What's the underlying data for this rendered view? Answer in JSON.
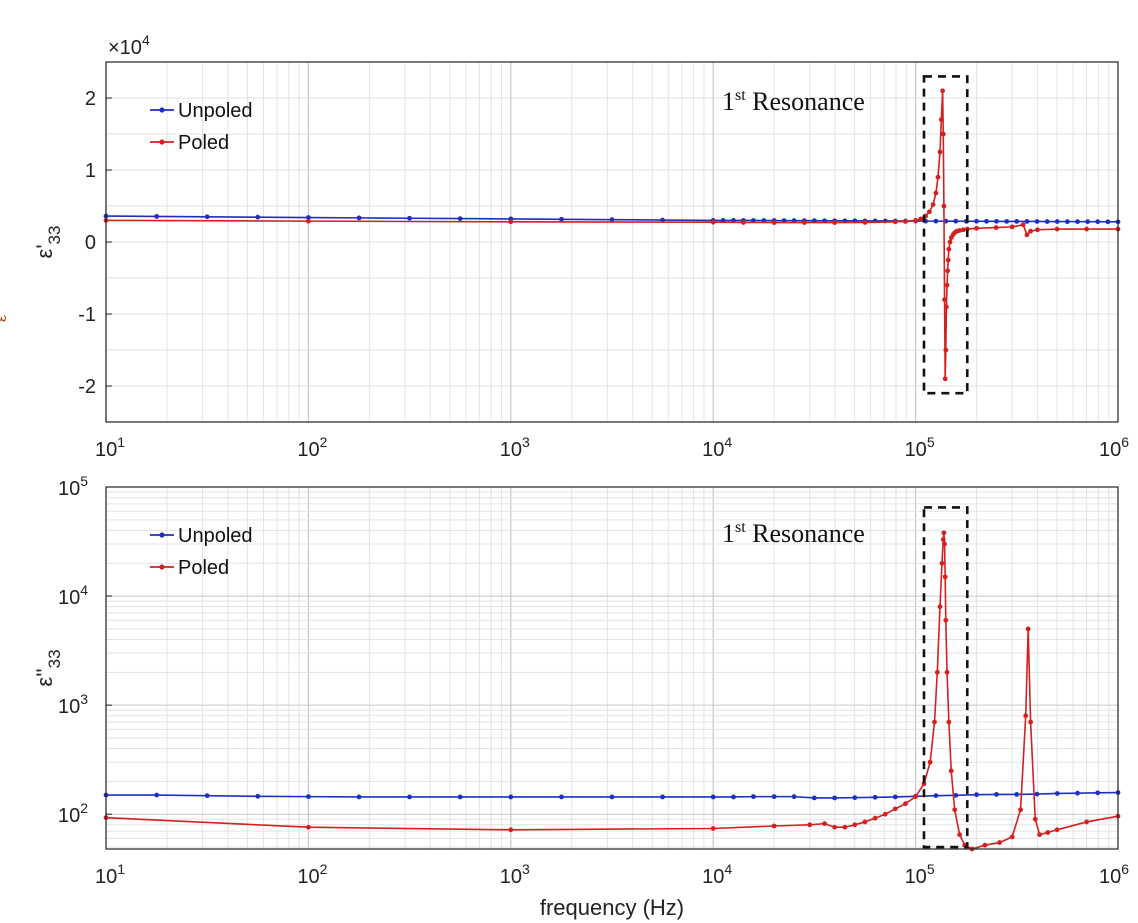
{
  "chart_data": [
    {
      "type": "line",
      "panel": "top",
      "ylabel": "ε'",
      "ylabel_sub": "33",
      "xscale": "log",
      "xlim": [
        10,
        1000000
      ],
      "xticks": [
        10,
        100,
        1000,
        10000,
        100000,
        1000000
      ],
      "xtick_labels": [
        {
          "base": "10",
          "exp": "1"
        },
        {
          "base": "10",
          "exp": "2"
        },
        {
          "base": "10",
          "exp": "3"
        },
        {
          "base": "10",
          "exp": "4"
        },
        {
          "base": "10",
          "exp": "5"
        },
        {
          "base": "10",
          "exp": "6"
        }
      ],
      "ylim": [
        -2.5,
        2.5
      ],
      "yticks": [
        -2,
        -1,
        0,
        1,
        2
      ],
      "ytick_labels": [
        "-2",
        "-1",
        "0",
        "1",
        "2"
      ],
      "y_multiplier": {
        "prefix": "×10",
        "exp": "4"
      },
      "grid": true,
      "legend_position": "top-left",
      "annotation": {
        "base": "1",
        "sup": "st",
        "text": " Resonance"
      },
      "highlight_box_x": [
        110000,
        180000
      ],
      "highlight_box_y": [
        -2.1,
        2.3
      ],
      "series": [
        {
          "name": "Unpoled",
          "color": "#1f2fbf",
          "x": [
            10,
            17.8,
            31.6,
            56.2,
            100,
            178,
            316,
            562,
            1000,
            1780,
            3160,
            5620,
            10000,
            11200,
            12600,
            14100,
            15800,
            17800,
            20000,
            22400,
            25100,
            28200,
            31600,
            35500,
            39800,
            44700,
            50100,
            56200,
            63100,
            70800,
            79400,
            89100,
            100000,
            112000,
            126000,
            141000,
            158000,
            178000,
            200000,
            224000,
            251000,
            282000,
            316000,
            355000,
            398000,
            447000,
            501000,
            562000,
            631000,
            708000,
            794000,
            891000,
            1000000
          ],
          "y": [
            0.36,
            0.355,
            0.35,
            0.345,
            0.34,
            0.335,
            0.33,
            0.325,
            0.32,
            0.315,
            0.31,
            0.305,
            0.3,
            0.3,
            0.3,
            0.299,
            0.299,
            0.298,
            0.298,
            0.297,
            0.297,
            0.296,
            0.296,
            0.295,
            0.295,
            0.294,
            0.294,
            0.293,
            0.293,
            0.292,
            0.292,
            0.291,
            0.291,
            0.29,
            0.29,
            0.289,
            0.289,
            0.288,
            0.288,
            0.287,
            0.287,
            0.286,
            0.286,
            0.285,
            0.285,
            0.284,
            0.284,
            0.283,
            0.283,
            0.282,
            0.282,
            0.281,
            0.28
          ]
        },
        {
          "name": "Poled",
          "color": "#d42020",
          "x": [
            10,
            100,
            1000,
            10000,
            14100,
            20000,
            28200,
            39800,
            56200,
            79400,
            89100,
            100000,
            106000,
            112000,
            117000,
            122000,
            126000,
            129000,
            132000,
            134000,
            136000,
            137000,
            138000,
            139000,
            140000,
            141000,
            142000,
            143000,
            144000,
            145000,
            146000,
            148000,
            150000,
            153000,
            156000,
            160000,
            165000,
            172000,
            180000,
            200000,
            250000,
            300000,
            340000,
            355000,
            370000,
            400000,
            500000,
            700000,
            1000000
          ],
          "y": [
            0.3,
            0.29,
            0.28,
            0.275,
            0.272,
            0.27,
            0.27,
            0.27,
            0.272,
            0.28,
            0.285,
            0.3,
            0.32,
            0.36,
            0.42,
            0.52,
            0.68,
            0.9,
            1.25,
            1.7,
            2.1,
            1.5,
            0.5,
            -0.8,
            -1.9,
            -1.5,
            -0.9,
            -0.6,
            -0.4,
            -0.25,
            -0.1,
            0.0,
            0.06,
            0.1,
            0.13,
            0.15,
            0.16,
            0.17,
            0.18,
            0.19,
            0.2,
            0.21,
            0.24,
            0.1,
            0.15,
            0.17,
            0.18,
            0.18,
            0.18
          ]
        }
      ]
    },
    {
      "type": "line",
      "panel": "bottom",
      "xlabel": "frequency (Hz)",
      "ylabel": "ε''",
      "ylabel_sub": "33",
      "xscale": "log",
      "yscale": "log",
      "xlim": [
        10,
        1000000
      ],
      "xticks": [
        10,
        100,
        1000,
        10000,
        100000,
        1000000
      ],
      "xtick_labels": [
        {
          "base": "10",
          "exp": "1"
        },
        {
          "base": "10",
          "exp": "2"
        },
        {
          "base": "10",
          "exp": "3"
        },
        {
          "base": "10",
          "exp": "4"
        },
        {
          "base": "10",
          "exp": "5"
        },
        {
          "base": "10",
          "exp": "6"
        }
      ],
      "ylim": [
        48,
        100000
      ],
      "yticks": [
        100,
        1000,
        10000,
        100000
      ],
      "ytick_labels": [
        {
          "base": "10",
          "exp": "2"
        },
        {
          "base": "10",
          "exp": "3"
        },
        {
          "base": "10",
          "exp": "4"
        },
        {
          "base": "10",
          "exp": "5"
        }
      ],
      "grid": true,
      "legend_position": "top-left",
      "annotation": {
        "base": "1",
        "sup": "st",
        "text": " Resonance"
      },
      "highlight_box_x": [
        110000,
        180000
      ],
      "highlight_box_y": [
        50,
        65000
      ],
      "series": [
        {
          "name": "Unpoled",
          "color": "#1f2fbf",
          "x": [
            10,
            17.8,
            31.6,
            56.2,
            100,
            178,
            316,
            562,
            1000,
            1780,
            3160,
            5620,
            10000,
            12600,
            15800,
            20000,
            25100,
            31600,
            39800,
            50100,
            63100,
            79400,
            100000,
            126000,
            158000,
            200000,
            251000,
            316000,
            398000,
            501000,
            631000,
            794000,
            1000000
          ],
          "y": [
            150,
            150,
            148,
            146,
            145,
            144,
            144,
            144,
            144,
            144,
            144,
            144,
            144,
            144,
            145,
            145,
            145,
            141,
            141,
            142,
            143,
            144,
            146,
            148,
            149,
            151,
            152,
            152,
            153,
            155,
            156,
            157,
            158
          ]
        },
        {
          "name": "Poled",
          "color": "#d42020",
          "x": [
            10,
            100,
            1000,
            10000,
            20000,
            30000,
            35500,
            39800,
            44700,
            50100,
            56200,
            63100,
            70800,
            79400,
            89100,
            100000,
            110000,
            118000,
            124000,
            128000,
            132000,
            135000,
            137000,
            138000,
            139000,
            140000,
            141000,
            143000,
            146000,
            150000,
            156000,
            165000,
            175000,
            190000,
            220000,
            260000,
            300000,
            330000,
            350000,
            360000,
            370000,
            390000,
            410000,
            450000,
            500000,
            700000,
            1000000
          ],
          "y": [
            93,
            76,
            72,
            74,
            78,
            80,
            82,
            76,
            76,
            80,
            85,
            92,
            100,
            112,
            125,
            145,
            190,
            300,
            700,
            2000,
            8000,
            20000,
            33000,
            38000,
            30000,
            15000,
            6000,
            2000,
            700,
            250,
            110,
            65,
            52,
            48,
            52,
            55,
            62,
            110,
            800,
            5000,
            700,
            90,
            65,
            68,
            72,
            85,
            96
          ]
        }
      ]
    }
  ],
  "stray_label": "ε"
}
